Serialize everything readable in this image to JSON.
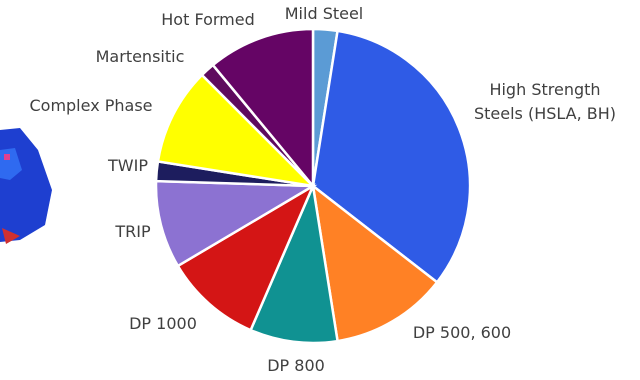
{
  "chart_data": {
    "type": "pie",
    "categories": [
      "Mild Steel",
      "High Strength Steels (HSLA, BH)",
      "DP 500, 600",
      "DP 800",
      "DP 1000",
      "TRIP",
      "TWIP",
      "Complex Phase",
      "Martensitic",
      "Hot Formed"
    ],
    "values": [
      2.5,
      33,
      12,
      9,
      10,
      9,
      2,
      10,
      1.5,
      11
    ],
    "colors": [
      "#5b9bd5",
      "#2f5be6",
      "#ff8125",
      "#109292",
      "#d41515",
      "#8c72d2",
      "#1d1d5e",
      "#ffff00",
      "#5e0b5e",
      "#650565"
    ]
  }
}
